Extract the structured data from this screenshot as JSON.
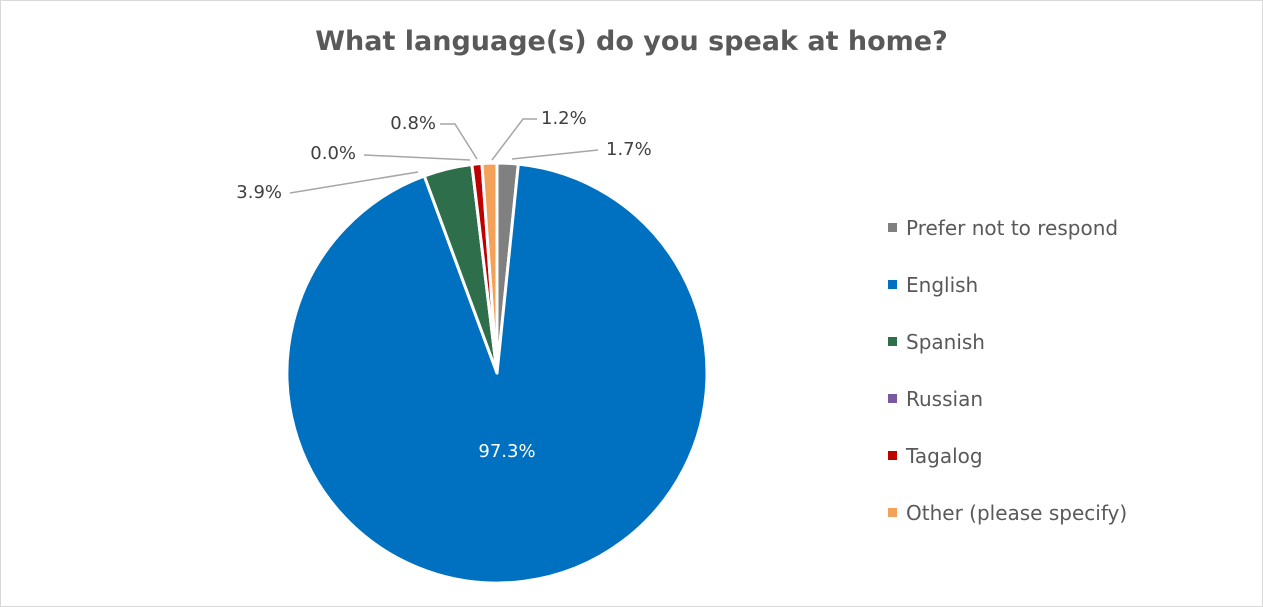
{
  "chart_data": {
    "type": "pie",
    "title": "What language(s) do you speak at home?",
    "slices": [
      {
        "name": "Prefer not to respond",
        "value": 1.7,
        "label": "1.7%",
        "color": "#808080"
      },
      {
        "name": "English",
        "value": 97.3,
        "label": "97.3%",
        "color": "#0070c0"
      },
      {
        "name": "Spanish",
        "value": 3.9,
        "label": "3.9%",
        "color": "#2e6e4a"
      },
      {
        "name": "Russian",
        "value": 0.0,
        "label": "0.0%",
        "color": "#7a58a0"
      },
      {
        "name": "Tagalog",
        "value": 0.8,
        "label": "0.8%",
        "color": "#c00000"
      },
      {
        "name": "Other (please specify)",
        "value": 1.2,
        "label": "1.2%",
        "color": "#f4a25a"
      }
    ],
    "legend_position": "right"
  }
}
